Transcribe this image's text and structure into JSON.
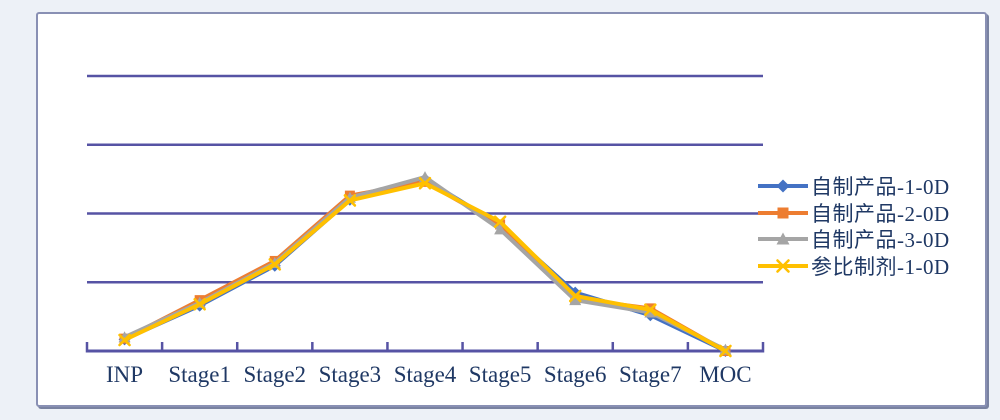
{
  "page": {
    "background_color": "#edf1f7",
    "panel_background": "#ffffff",
    "panel_border_color": "#8990b4"
  },
  "chart_data": {
    "type": "line",
    "title": "",
    "xlabel": "",
    "ylabel": "",
    "categories": [
      "INP",
      "Stage1",
      "Stage2",
      "Stage3",
      "Stage4",
      "Stage5",
      "Stage6",
      "Stage7",
      "MOC"
    ],
    "series": [
      {
        "name": "自制产品-1-0D",
        "color": "#4472C4",
        "marker": "diamond",
        "values": [
          0.17,
          0.66,
          1.24,
          2.2,
          2.5,
          1.83,
          0.85,
          0.52,
          0.0
        ]
      },
      {
        "name": "自制产品-2-0D",
        "color": "#ED7D31",
        "marker": "square",
        "values": [
          0.18,
          0.74,
          1.31,
          2.26,
          2.46,
          1.84,
          0.76,
          0.62,
          0.0
        ]
      },
      {
        "name": "自制产品-3-0D",
        "color": "#A5A5A5",
        "marker": "triangle",
        "values": [
          0.2,
          0.7,
          1.28,
          2.23,
          2.53,
          1.77,
          0.74,
          0.56,
          0.02
        ]
      },
      {
        "name": "参比制剂-1-0D",
        "color": "#FFC000",
        "marker": "x",
        "values": [
          0.16,
          0.68,
          1.26,
          2.19,
          2.44,
          1.88,
          0.8,
          0.6,
          0.0
        ]
      }
    ],
    "ylim": [
      0,
      4
    ],
    "gridline_step": 1,
    "y_axis_labels_visible": false,
    "note": "y-axis has no tick labels; values estimated in gridline-spacing units from the baseline",
    "grid": "horizontal",
    "gridline_color": "#5653a4",
    "axis_color": "#5653a4",
    "tick_label_color": "#1f3864",
    "legend_position": "right",
    "legend_text_color": "#1f3864"
  }
}
